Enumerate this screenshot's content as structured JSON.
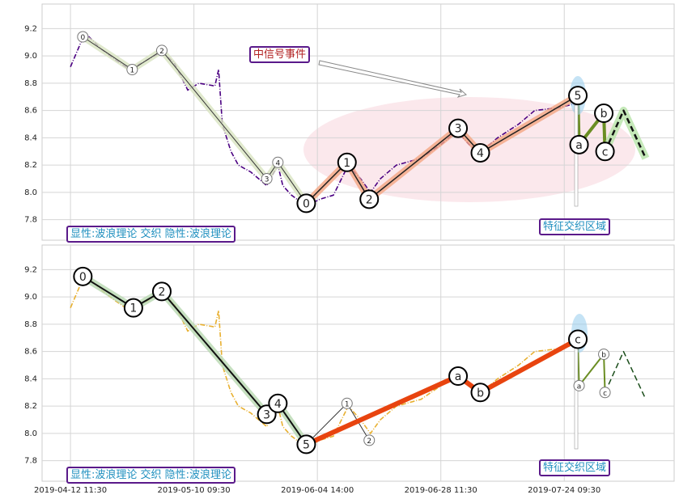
{
  "chart_data": [
    {
      "type": "line",
      "xlim": [
        -23,
        489
      ],
      "xticks": [
        0,
        100,
        200,
        300,
        400
      ],
      "ylim": [
        7.65,
        9.38
      ],
      "yticks": [
        7.8,
        {
          "value": 8,
          "label": "8.0"
        },
        8.2,
        8.4,
        8.6,
        8.8,
        {
          "value": 9,
          "label": "9.0"
        },
        9.2
      ],
      "grid": true,
      "price": {
        "color": "#4b0082",
        "x": [
          0,
          8.5,
          15,
          25,
          35,
          48,
          58,
          74,
          84,
          95,
          104,
          117,
          120,
          123,
          130,
          136,
          146,
          159,
          168,
          172,
          179,
          191,
          202,
          213,
          225,
          235,
          243,
          251,
          264,
          284,
          300,
          313,
          323,
          333,
          346,
          363,
          376,
          395,
          409,
          412
        ],
        "values": [
          8.92,
          9.1,
          9.14,
          9.05,
          8.98,
          8.9,
          8.95,
          9.03,
          8.95,
          8.75,
          8.8,
          8.78,
          8.9,
          8.5,
          8.3,
          8.2,
          8.15,
          8.05,
          8.2,
          8.05,
          7.98,
          7.9,
          7.95,
          7.98,
          8.2,
          8.1,
          8.0,
          8.1,
          8.2,
          8.25,
          8.35,
          8.45,
          8.35,
          8.3,
          8.4,
          8.5,
          8.6,
          8.62,
          8.65,
          8.62
        ]
      },
      "waves": [
        {
          "color": "#333333",
          "width": 1,
          "halo": "#d8e4c0",
          "circle": "small",
          "x": [
            10,
            50,
            74,
            159,
            168,
            191
          ],
          "values": [
            9.14,
            8.9,
            9.04,
            8.1,
            8.22,
            7.92
          ],
          "labels": [
            "0",
            "1",
            "2",
            "3",
            "4",
            "0"
          ]
        },
        {
          "color": "#222222",
          "width": 1.5,
          "halo": "#f4a582",
          "circle": "big",
          "x": [
            191,
            224,
            242,
            314,
            332,
            411
          ],
          "values": [
            7.92,
            8.22,
            7.95,
            8.47,
            8.29,
            8.71
          ],
          "labels": [
            "0",
            "1",
            "2",
            "3",
            "4",
            "5"
          ]
        },
        {
          "color": "#6b8e23",
          "width": 4,
          "circle": "big",
          "x": [
            411,
            412,
            432,
            433
          ],
          "values": [
            8.71,
            8.35,
            8.58,
            8.3
          ],
          "labels": [
            null,
            "a",
            "b",
            "c"
          ]
        },
        {
          "color": "#111111",
          "width": 2.5,
          "halo": "#b6e3a8",
          "dash": true,
          "x": [
            433,
            448,
            466
          ],
          "values": [
            8.3,
            8.6,
            8.25
          ]
        }
      ],
      "event": "中信号事件",
      "notes": [
        "显性:波浪理论 交织 隐性:波浪理论",
        "特征交织区域"
      ]
    },
    {
      "type": "line",
      "xlim": [
        -23,
        489
      ],
      "xticks": [
        {
          "value": 0,
          "label": "2019-04-12 11:30"
        },
        {
          "value": 100,
          "label": "2019-05-10 09:30"
        },
        {
          "value": 200,
          "label": "2019-06-04 14:00"
        },
        {
          "value": 300,
          "label": "2019-06-28 11:30"
        },
        {
          "value": 400,
          "label": "2019-07-24 09:30"
        }
      ],
      "ylim": [
        7.65,
        9.38
      ],
      "yticks": [
        7.8,
        {
          "value": 8,
          "label": "8.0"
        },
        8.2,
        8.4,
        8.6,
        8.8,
        {
          "value": 9,
          "label": "9.0"
        },
        9.2
      ],
      "grid": true,
      "price": {
        "color": "#e8b030",
        "x": [
          0,
          8.5,
          15,
          25,
          35,
          48,
          58,
          74,
          84,
          95,
          104,
          117,
          120,
          123,
          130,
          136,
          146,
          159,
          168,
          172,
          179,
          191,
          202,
          213,
          225,
          235,
          243,
          251,
          264,
          284,
          300,
          313,
          323,
          333,
          346,
          363,
          376,
          395,
          409,
          412
        ],
        "values": [
          8.92,
          9.1,
          9.14,
          9.05,
          8.98,
          8.9,
          8.95,
          9.03,
          8.95,
          8.75,
          8.8,
          8.78,
          8.9,
          8.5,
          8.3,
          8.2,
          8.15,
          8.05,
          8.2,
          8.05,
          7.98,
          7.9,
          7.95,
          7.98,
          8.2,
          8.1,
          8.0,
          8.1,
          8.2,
          8.25,
          8.35,
          8.45,
          8.35,
          8.3,
          8.4,
          8.5,
          8.6,
          8.62,
          8.65,
          8.62
        ]
      },
      "waves": [
        {
          "color": "#111111",
          "width": 2,
          "halo": "#b8d8b0",
          "circle": "big",
          "x": [
            10,
            51,
            74,
            159,
            168,
            191
          ],
          "values": [
            9.15,
            8.92,
            9.04,
            8.14,
            8.22,
            7.92
          ],
          "labels": [
            "0",
            "1",
            "2",
            "3",
            "4",
            "5"
          ]
        },
        {
          "color": "#333333",
          "width": 1,
          "circle": "small",
          "x": [
            191,
            224,
            242
          ],
          "values": [
            7.92,
            8.22,
            7.95
          ],
          "labels": [
            null,
            "1",
            "2"
          ]
        },
        {
          "color": "#e8440f",
          "width": 6,
          "circle": "big",
          "x": [
            191,
            314,
            332,
            411
          ],
          "values": [
            7.92,
            8.42,
            8.3,
            8.69
          ],
          "labels": [
            null,
            "a",
            "b",
            "c"
          ]
        },
        {
          "color": "#6b8e23",
          "width": 2,
          "circle": "small",
          "x": [
            411,
            412,
            432,
            433
          ],
          "values": [
            8.69,
            8.35,
            8.58,
            8.3
          ],
          "labels": [
            null,
            "a",
            "b",
            "c"
          ]
        },
        {
          "color": "#1a4d1a",
          "width": 1.5,
          "dash": true,
          "x": [
            433,
            448,
            466
          ],
          "values": [
            8.3,
            8.6,
            8.25
          ]
        }
      ],
      "notes": [
        "显性:波浪理论 交织 隐性:波浪理论",
        "特征交织区域"
      ]
    }
  ]
}
